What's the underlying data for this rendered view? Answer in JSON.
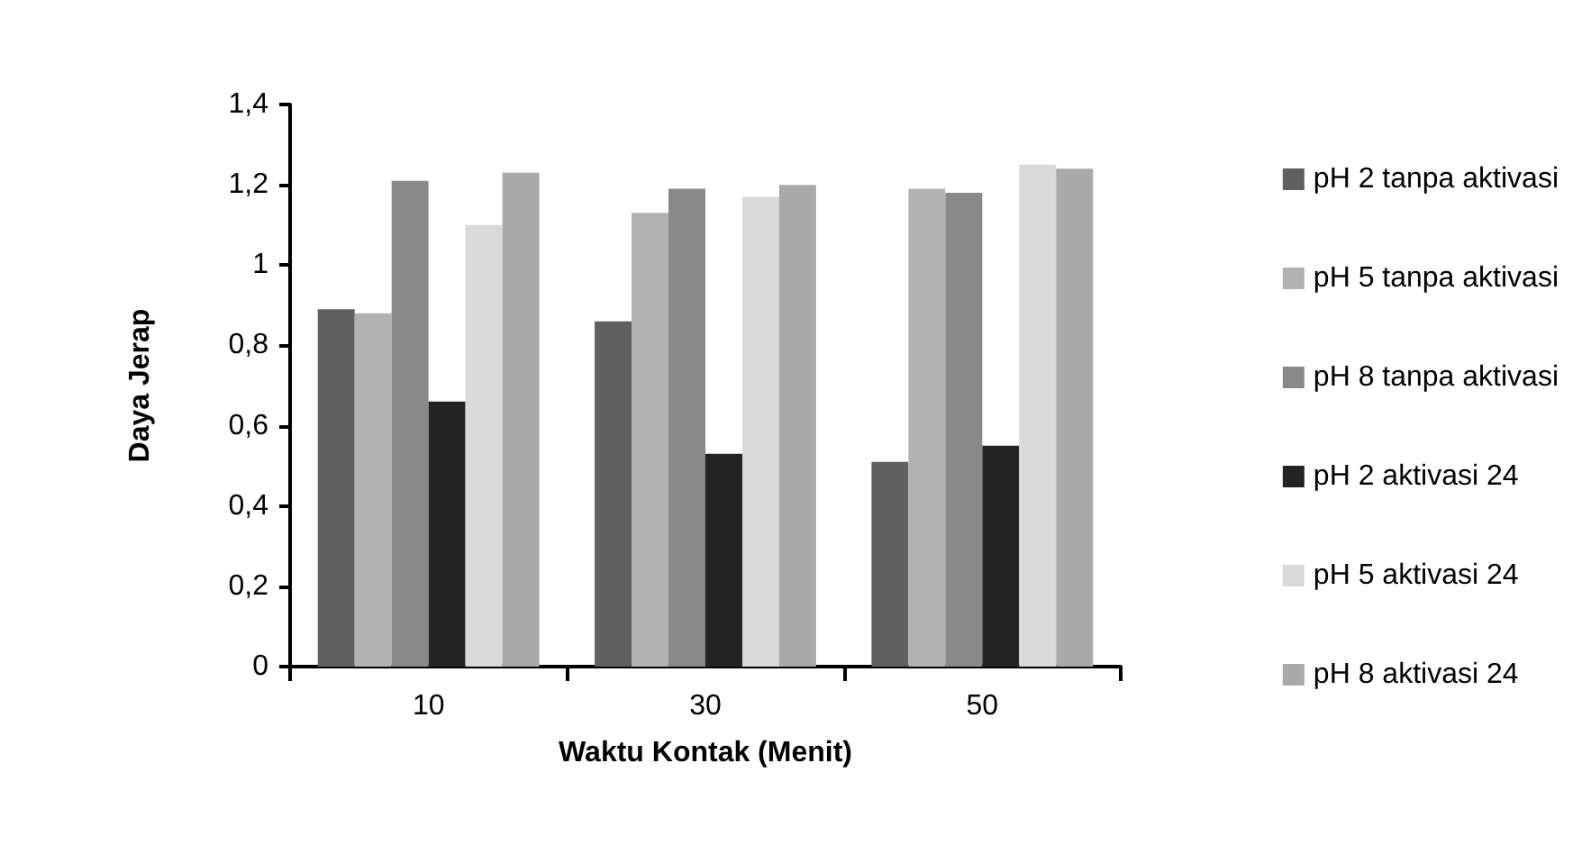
{
  "chart_data": {
    "type": "bar",
    "xlabel": "Waktu Kontak (Menit)",
    "ylabel": "Daya Jerap",
    "categories": [
      "10",
      "30",
      "50"
    ],
    "series": [
      {
        "name": "pH 2 tanpa aktivasi",
        "color": "#606060",
        "values": [
          0.89,
          0.86,
          0.51
        ]
      },
      {
        "name": "pH 5 tanpa aktivasi",
        "color": "#b2b2b2",
        "values": [
          0.88,
          1.13,
          1.19
        ]
      },
      {
        "name": "pH 8 tanpa aktivasi",
        "color": "#898989",
        "values": [
          1.21,
          1.19,
          1.18
        ]
      },
      {
        "name": "pH 2 aktivasi 24",
        "color": "#242424",
        "values": [
          0.66,
          0.53,
          0.55
        ]
      },
      {
        "name": "pH 5 aktivasi 24",
        "color": "#d9d9d9",
        "values": [
          1.1,
          1.17,
          1.25
        ]
      },
      {
        "name": "pH 8 aktivasi 24",
        "color": "#a9a9a9",
        "values": [
          1.23,
          1.2,
          1.24
        ]
      }
    ],
    "ylim": [
      0,
      1.4
    ],
    "yticks": [
      0,
      {
        "value": 0.2,
        "label": "0,2"
      },
      {
        "value": 0.4,
        "label": "0,4"
      },
      {
        "value": 0.6,
        "label": "0,6"
      },
      {
        "value": 0.8,
        "label": "0,8"
      },
      1,
      {
        "value": 1.2,
        "label": "1,2"
      },
      {
        "value": 1.4,
        "label": "1,4"
      }
    ],
    "grid": false,
    "legend": "right"
  }
}
